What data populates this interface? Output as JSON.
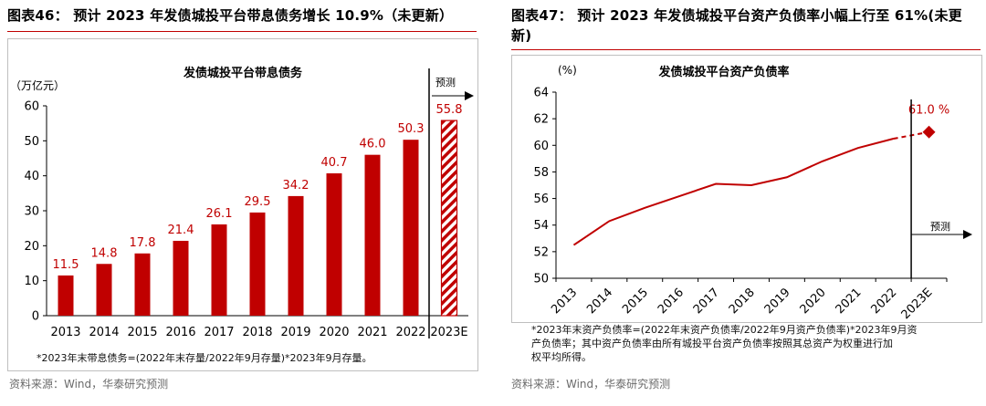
{
  "left": {
    "figure_title": "图表46： 预计 2023 年发债城投平台带息债务增长 10.9%（未更新）",
    "note": "*2023年末带息债务=(2022年末存量/2022年9月存量)*2023年9月存量。",
    "source": "资料来源：Wind，华泰研究预测"
  },
  "right": {
    "figure_title": "图表47： 预计 2023 年发债城投平台资产负债率小幅上行至 61%(未更新)",
    "note_lines": [
      "*2023年末资产负债率=(2022年末资产负债率/2022年9月资产负债率)*2023年9月资",
      "产负债率；其中资产负债率由所有城投平台资产负债率按照其总资产为权重进行加",
      "权平均所得。"
    ],
    "source": "资料来源：Wind，华泰研究预测"
  },
  "colors": {
    "bar": "#c00000",
    "accent": "#c00000",
    "axis": "#000000"
  },
  "chart_data": [
    {
      "type": "bar",
      "title": "发债城投平台带息债务",
      "ylabel": "（万亿元）",
      "xlabel": "",
      "categories": [
        "2013",
        "2014",
        "2015",
        "2016",
        "2017",
        "2018",
        "2019",
        "2020",
        "2021",
        "2022",
        "2023E"
      ],
      "values": [
        11.5,
        14.8,
        17.8,
        21.4,
        26.1,
        29.5,
        34.2,
        40.7,
        46.0,
        50.3,
        55.8
      ],
      "value_labels": [
        "11.5",
        "14.8",
        "17.8",
        "21.4",
        "26.1",
        "29.5",
        "34.2",
        "40.7",
        "46.0",
        "50.3",
        "55.8"
      ],
      "forecast_index": 10,
      "forecast_label": "预测",
      "ylim": [
        0,
        60
      ],
      "yticks": [
        0,
        10,
        20,
        30,
        40,
        50,
        60
      ],
      "ytick_labels": [
        "0",
        "10",
        "20",
        "30",
        "40",
        "50",
        "60"
      ]
    },
    {
      "type": "line",
      "title": "发债城投平台资产负债率",
      "ylabel": "(%)",
      "xlabel": "",
      "categories": [
        "2013",
        "2014",
        "2015",
        "2016",
        "2017",
        "2018",
        "2019",
        "2020",
        "2021",
        "2022",
        "2023E"
      ],
      "values": [
        52.5,
        54.3,
        55.3,
        56.2,
        57.1,
        57.0,
        57.6,
        58.8,
        59.8,
        60.5,
        61.0
      ],
      "forecast_index": 10,
      "forecast_label": "预测",
      "forecast_value_label": "61.0 %",
      "ylim": [
        50,
        64
      ],
      "yticks": [
        50,
        52,
        54,
        56,
        58,
        60,
        62,
        64
      ],
      "ytick_labels": [
        "50",
        "52",
        "54",
        "56",
        "58",
        "60",
        "62",
        "64"
      ]
    }
  ]
}
